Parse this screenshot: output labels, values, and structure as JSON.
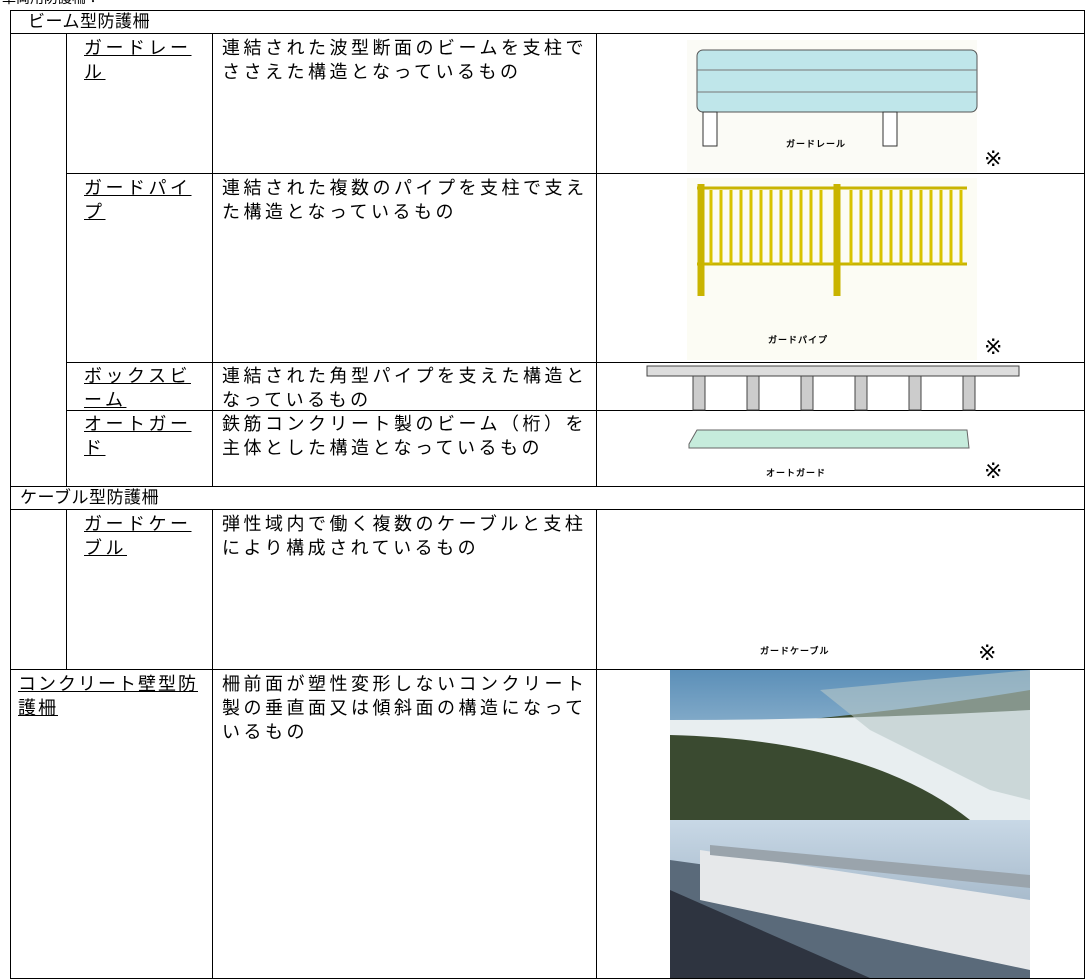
{
  "header": {
    "title": "車両用防護柵："
  },
  "table": {
    "sections": [
      {
        "title": "ビーム型防護柵",
        "rows": [
          {
            "name": "ガードレール",
            "description": "連結された波型断面のビームを支柱でささえた構造となっているもの",
            "figure_caption": "ガードレール",
            "note": "※"
          },
          {
            "name": "ガードパイプ",
            "description": "連結された複数のパイプを支柱で支えた構造となっているもの",
            "figure_caption": "ガードパイプ",
            "note": "※"
          },
          {
            "name": "ボックスビーム",
            "description": "連結された角型パイプを支えた構造となっているもの"
          },
          {
            "name": "オートガード",
            "description": "鉄筋コンクリート製のビーム（桁）を主体とした構造となっているもの",
            "figure_caption": "オートガード",
            "note": "※"
          }
        ]
      },
      {
        "title": "ケーブル型防護柵",
        "rows": [
          {
            "name": "ガードケーブル",
            "description": "弾性域内で働く複数のケーブルと支柱により構成されているもの",
            "figure_caption": "ガードケーブル",
            "note": "※"
          }
        ]
      }
    ],
    "final_row": {
      "name": "コンクリート壁型防護柵",
      "description": "柵前面が塑性変形しないコンクリート製の垂直面又は傾斜面の構造になっているもの"
    }
  }
}
